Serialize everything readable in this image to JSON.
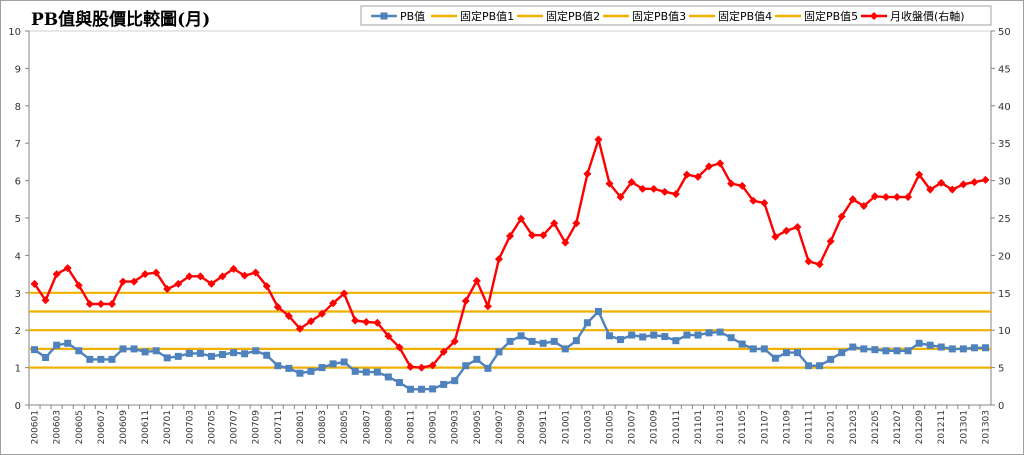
{
  "chart_data": {
    "type": "line",
    "title": "PB值與股價比較圖(月)",
    "y_left_range": [
      0,
      10
    ],
    "y_left_ticks": [
      "0",
      "1",
      "2",
      "3",
      "4",
      "5",
      "6",
      "7",
      "8",
      "9",
      "10"
    ],
    "y_right_range": [
      0,
      50
    ],
    "y_right_ticks": [
      "0",
      "5",
      "10",
      "15",
      "20",
      "25",
      "30",
      "35",
      "40",
      "45",
      "50"
    ],
    "legend_position": "top-right",
    "grid": false,
    "x": [
      "200601",
      "200602",
      "200603",
      "200604",
      "200605",
      "200606",
      "200607",
      "200608",
      "200609",
      "200610",
      "200611",
      "200612",
      "200701",
      "200702",
      "200703",
      "200704",
      "200705",
      "200706",
      "200707",
      "200708",
      "200709",
      "200710",
      "200711",
      "200712",
      "200801",
      "200802",
      "200803",
      "200804",
      "200805",
      "200806",
      "200807",
      "200808",
      "200809",
      "200810",
      "200811",
      "200812",
      "200901",
      "200902",
      "200903",
      "200904",
      "200905",
      "200906",
      "200907",
      "200908",
      "200909",
      "200910",
      "200911",
      "200912",
      "201001",
      "201002",
      "201003",
      "201004",
      "201005",
      "201006",
      "201007",
      "201008",
      "201009",
      "201010",
      "201011",
      "201012",
      "201101",
      "201102",
      "201103",
      "201104",
      "201105",
      "201106",
      "201107",
      "201108",
      "201109",
      "201110",
      "201111",
      "201112",
      "201201",
      "201202",
      "201203",
      "201204",
      "201205",
      "201206",
      "201207",
      "201208",
      "201209",
      "201210",
      "201211",
      "201212",
      "201301",
      "201302",
      "201303"
    ],
    "x_tick_labels": [
      "200601",
      "200603",
      "200605",
      "200607",
      "200609",
      "200611",
      "200701",
      "200703",
      "200705",
      "200707",
      "200709",
      "200711",
      "200801",
      "200803",
      "200805",
      "200807",
      "200809",
      "200811",
      "200901",
      "200903",
      "200905",
      "200907",
      "200909",
      "200911",
      "201001",
      "201003",
      "201005",
      "201007",
      "201009",
      "201011",
      "201101",
      "201103",
      "201105",
      "201107",
      "201109",
      "201111",
      "201201",
      "201203",
      "201205",
      "201207",
      "201209",
      "201211",
      "201301",
      "201303"
    ],
    "series": [
      {
        "name": "PB值",
        "axis": "left",
        "color": "#4f81bd",
        "marker": "square",
        "values": [
          1.48,
          1.27,
          1.6,
          1.65,
          1.45,
          1.22,
          1.22,
          1.22,
          1.5,
          1.5,
          1.42,
          1.45,
          1.26,
          1.3,
          1.38,
          1.38,
          1.3,
          1.35,
          1.4,
          1.37,
          1.45,
          1.33,
          1.05,
          0.98,
          0.85,
          0.9,
          1.0,
          1.1,
          1.15,
          0.9,
          0.88,
          0.88,
          0.75,
          0.6,
          0.42,
          0.42,
          0.43,
          0.55,
          0.65,
          1.05,
          1.22,
          0.98,
          1.42,
          1.7,
          1.85,
          1.7,
          1.65,
          1.7,
          1.5,
          1.72,
          2.2,
          2.5,
          1.85,
          1.75,
          1.87,
          1.82,
          1.87,
          1.83,
          1.72,
          1.87,
          1.87,
          1.93,
          1.95,
          1.8,
          1.63,
          1.5,
          1.5,
          1.25,
          1.4,
          1.4,
          1.05,
          1.05,
          1.22,
          1.4,
          1.55,
          1.5,
          1.48,
          1.45,
          1.45,
          1.45,
          1.65,
          1.6,
          1.55,
          1.5,
          1.5,
          1.53,
          1.53
        ]
      },
      {
        "name": "固定PB值1",
        "axis": "left",
        "color": "#f0b000",
        "constant": 1.0
      },
      {
        "name": "固定PB值2",
        "axis": "left",
        "color": "#f0b000",
        "constant": 1.5
      },
      {
        "name": "固定PB值3",
        "axis": "left",
        "color": "#f0b000",
        "constant": 2.0
      },
      {
        "name": "固定PB值4",
        "axis": "left",
        "color": "#f0b000",
        "constant": 2.5
      },
      {
        "name": "固定PB值5",
        "axis": "left",
        "color": "#f0b000",
        "constant": 3.0
      },
      {
        "name": "月收盤價(右軸)",
        "axis": "right",
        "color": "#ff0000",
        "marker": "diamond",
        "values": [
          16.2,
          14,
          17.5,
          18.3,
          16,
          13.5,
          13.5,
          13.5,
          16.5,
          16.5,
          17.5,
          17.7,
          15.5,
          16.2,
          17.2,
          17.2,
          16.2,
          17.2,
          18.2,
          17.3,
          17.7,
          15.9,
          13.1,
          11.9,
          10.2,
          11.2,
          12.2,
          13.6,
          14.9,
          11.3,
          11.1,
          11,
          9.2,
          7.7,
          5.1,
          5,
          5.3,
          7.1,
          8.5,
          13.9,
          16.6,
          13.2,
          19.5,
          22.6,
          24.9,
          22.7,
          22.7,
          24.3,
          21.7,
          24.3,
          30.9,
          35.5,
          29.6,
          27.8,
          29.8,
          28.9,
          28.9,
          28.5,
          28.2,
          30.8,
          30.5,
          31.9,
          32.3,
          29.6,
          29.3,
          27.3,
          27,
          22.5,
          23.3,
          23.8,
          19.2,
          18.8,
          21.9,
          25.2,
          27.5,
          26.6,
          27.9,
          27.8,
          27.8,
          27.8,
          30.8,
          28.8,
          29.7,
          28.8,
          29.5,
          29.8,
          30.1
        ]
      }
    ]
  }
}
